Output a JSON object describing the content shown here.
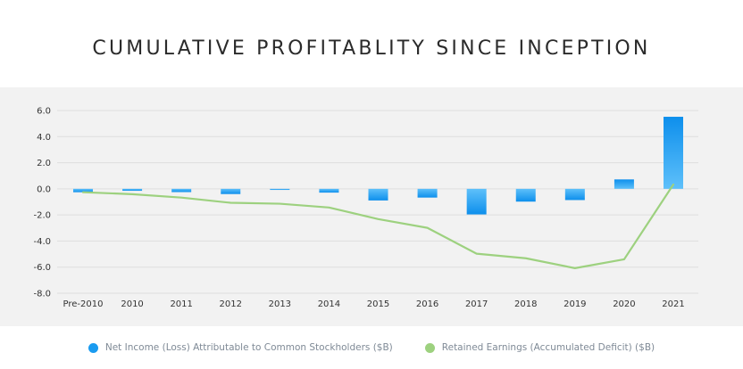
{
  "chart_data": {
    "type": "bar",
    "title": "CUMULATIVE PROFITABLITY SINCE INCEPTION",
    "categories": [
      "Pre-2010",
      "2010",
      "2011",
      "2012",
      "2013",
      "2014",
      "2015",
      "2016",
      "2017",
      "2018",
      "2019",
      "2020",
      "2021"
    ],
    "ylim": [
      -8.0,
      6.0
    ],
    "yticks": [
      "6.0",
      "4.0",
      "2.0",
      "0.0",
      "-2.0",
      "-4.0",
      "-6.0",
      "-8.0"
    ],
    "ytick_values": [
      6,
      4,
      2,
      0,
      -2,
      -4,
      -6,
      -8
    ],
    "grid": true,
    "legend_position": "bottom",
    "series": [
      {
        "name": "Net Income (Loss) Attributable to Common Stockholders ($B)",
        "type": "bar",
        "color": "#1a9bf0",
        "values": [
          -0.26,
          -0.15,
          -0.25,
          -0.4,
          -0.07,
          -0.29,
          -0.89,
          -0.67,
          -1.96,
          -0.98,
          -0.86,
          0.72,
          5.52
        ]
      },
      {
        "name": "Retained Earnings (Accumulated Deficit) ($B)",
        "type": "line",
        "color": "#9dd17f",
        "values": [
          -0.26,
          -0.41,
          -0.67,
          -1.07,
          -1.14,
          -1.43,
          -2.32,
          -2.99,
          -4.97,
          -5.32,
          -6.08,
          -5.4,
          0.33
        ]
      }
    ]
  }
}
